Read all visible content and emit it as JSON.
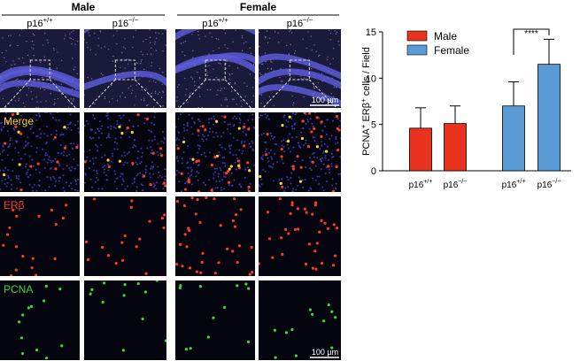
{
  "figure": {
    "groups": [
      "Male",
      "Female"
    ],
    "genotypes": [
      [
        "p16",
        "+/+"
      ],
      [
        "p16",
        "−/−"
      ],
      [
        "p16",
        "+/+"
      ],
      [
        "p16",
        "−/−"
      ]
    ],
    "rows": [
      "Merge",
      "ERβ",
      "PCNA"
    ],
    "scale_bar": "100 µm"
  },
  "chart_data": {
    "type": "bar",
    "ylabel": [
      "PCNA",
      "+",
      " ERβ",
      "+",
      " cells / Field"
    ],
    "categories": [
      [
        "p16",
        "+/+"
      ],
      [
        "p16",
        "−/−"
      ],
      [
        "p16",
        "+/+"
      ],
      [
        "p16",
        "−/−"
      ]
    ],
    "series": [
      {
        "name": "Male",
        "color": "#e8321e",
        "values": [
          4.6,
          5.1,
          null,
          null
        ],
        "errors": [
          2.2,
          1.9,
          null,
          null
        ]
      },
      {
        "name": "Female",
        "color": "#5b9bd5",
        "values": [
          null,
          null,
          7.0,
          11.5
        ],
        "errors": [
          null,
          null,
          2.6,
          2.7
        ]
      }
    ],
    "annotation": "****",
    "ylim": [
      0,
      15
    ],
    "yticks": [
      0,
      5,
      10,
      15
    ],
    "legend": "upper left"
  }
}
